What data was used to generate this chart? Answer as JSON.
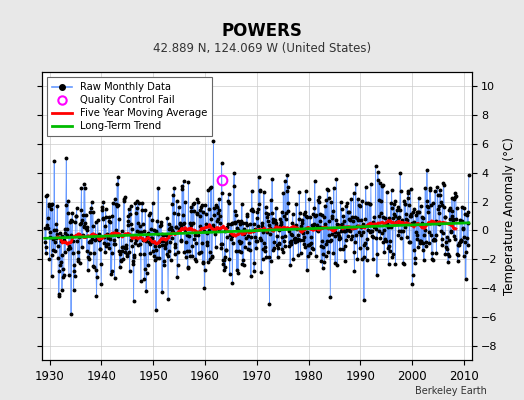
{
  "title": "POWERS",
  "subtitle": "42.889 N, 124.069 W (United States)",
  "ylabel": "Temperature Anomaly (°C)",
  "xlim": [
    1928.5,
    2011.5
  ],
  "ylim": [
    -9,
    11
  ],
  "yticks": [
    -8,
    -6,
    -4,
    -2,
    0,
    2,
    4,
    6,
    8,
    10
  ],
  "xticks": [
    1930,
    1940,
    1950,
    1960,
    1970,
    1980,
    1990,
    2000,
    2010
  ],
  "bg_color": "#e8e8e8",
  "plot_bg_color": "#ffffff",
  "raw_line_color": "#6699ff",
  "raw_dot_color": "#000000",
  "qc_color": "#ff00ff",
  "moving_avg_color": "#ff0000",
  "trend_color": "#00bb00",
  "watermark": "Berkeley Earth",
  "seed": 12345
}
